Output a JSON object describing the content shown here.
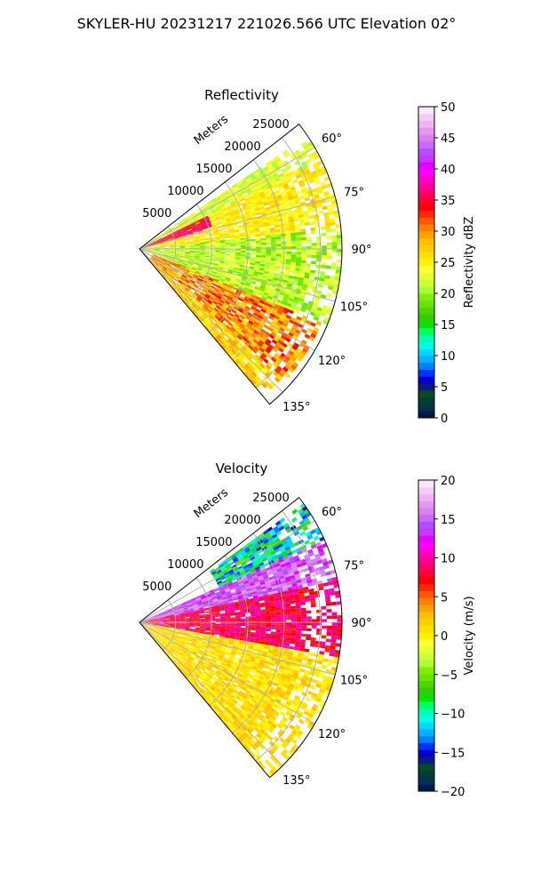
{
  "figure": {
    "suptitle": "SKYLER-HU  20231217  221026.566 UTC Elevation 02°"
  },
  "chart_data": [
    {
      "type": "heatmap",
      "subtype": "polar-sector-ppi",
      "title": "Reflectivity",
      "radial_label": "Meters",
      "radial_ticks": [
        "5000",
        "10000",
        "15000",
        "20000",
        "25000"
      ],
      "radial_max": 28000,
      "angle_ticks": [
        "60°",
        "75°",
        "90°",
        "105°",
        "120°",
        "135°"
      ],
      "angle_range": [
        52,
        140
      ],
      "grid": true,
      "colorbar": {
        "label": "Reflectivity dBZ",
        "ticks": [
          "0",
          "5",
          "10",
          "15",
          "20",
          "25",
          "30",
          "35",
          "40",
          "45",
          "50"
        ],
        "range": [
          0,
          50
        ],
        "colors": [
          "#001a4d",
          "#00334d",
          "#003d33",
          "#004d26",
          "#0a1a80",
          "#0000cc",
          "#0033ff",
          "#0080ff",
          "#00b3ff",
          "#00d9ff",
          "#00ffe6",
          "#00ffb3",
          "#00ff66",
          "#00e600",
          "#33cc00",
          "#4dd600",
          "#66e600",
          "#80f000",
          "#a6ff33",
          "#ccff33",
          "#e6ff33",
          "#ffff33",
          "#fff200",
          "#ffe100",
          "#ffd000",
          "#ffbf00",
          "#ffa000",
          "#ff8000",
          "#ff5a00",
          "#ff2800",
          "#ff0000",
          "#ff0033",
          "#ff0066",
          "#ff0099",
          "#ff00cc",
          "#ff00ff",
          "#e600ff",
          "#cc33ff",
          "#b34dff",
          "#cc66ff",
          "#dd80f0",
          "#e699f0",
          "#f0b3f5",
          "#f5ccf5",
          "#fae6fa"
        ]
      },
      "sectors": [
        {
          "range": [
            0,
            28000
          ],
          "angle": [
            64,
            84
          ],
          "band": [
            23,
            28
          ]
        },
        {
          "range": [
            0,
            28000
          ],
          "angle": [
            84,
            112
          ],
          "band": [
            18,
            24
          ]
        },
        {
          "range": [
            0,
            10000
          ],
          "angle": [
            64,
            74
          ],
          "band": [
            32,
            40
          ]
        },
        {
          "range": [
            2000,
            27000
          ],
          "angle": [
            112,
            132
          ],
          "band": [
            26,
            34
          ]
        },
        {
          "range": [
            0,
            26000
          ],
          "angle": [
            132,
            140
          ],
          "band": [
            24,
            30
          ]
        },
        {
          "range": [
            0,
            28000
          ],
          "angle": [
            56,
            64
          ],
          "band": [
            20,
            25
          ]
        }
      ]
    },
    {
      "type": "heatmap",
      "subtype": "polar-sector-ppi",
      "title": "Velocity",
      "radial_label": "Meters",
      "radial_ticks": [
        "5000",
        "10000",
        "15000",
        "20000",
        "25000"
      ],
      "radial_max": 28000,
      "angle_ticks": [
        "60°",
        "75°",
        "90°",
        "105°",
        "120°",
        "135°"
      ],
      "angle_range": [
        52,
        140
      ],
      "grid": true,
      "colorbar": {
        "label": "Velocity (m/s)",
        "ticks": [
          "−20",
          "−15",
          "−10",
          "−5",
          "0",
          "5",
          "10",
          "15",
          "20"
        ],
        "range": [
          -20,
          20
        ],
        "colors": [
          "#001a4d",
          "#00334d",
          "#003d33",
          "#004d26",
          "#0a1a80",
          "#0000cc",
          "#0033ff",
          "#0080ff",
          "#00b3ff",
          "#00d9ff",
          "#00ffe6",
          "#00ffb3",
          "#00ff66",
          "#00e600",
          "#33cc00",
          "#4dd600",
          "#66e600",
          "#80f000",
          "#a6ff33",
          "#ccff33",
          "#e6ff33",
          "#ffff33",
          "#fff200",
          "#ffe100",
          "#ffd000",
          "#ffbf00",
          "#ffa000",
          "#ff8000",
          "#ff5a00",
          "#ff2800",
          "#ff0000",
          "#ff0033",
          "#ff0066",
          "#ff0099",
          "#ff00cc",
          "#ff00ff",
          "#e600ff",
          "#cc33ff",
          "#b34dff",
          "#cc66ff",
          "#dd80f0",
          "#e699f0",
          "#f0b3f5",
          "#f5ccf5",
          "#fae6fa"
        ]
      },
      "sectors": [
        {
          "range": [
            12000,
            28000
          ],
          "angle": [
            54,
            66
          ],
          "band": [
            -15,
            -5
          ]
        },
        {
          "range": [
            0,
            28000
          ],
          "angle": [
            66,
            78
          ],
          "band": [
            12,
            17
          ]
        },
        {
          "range": [
            0,
            28000
          ],
          "angle": [
            78,
            100
          ],
          "band": [
            6,
            11
          ]
        },
        {
          "range": [
            0,
            28000
          ],
          "angle": [
            100,
            140
          ],
          "band": [
            -1,
            3
          ]
        }
      ]
    }
  ]
}
